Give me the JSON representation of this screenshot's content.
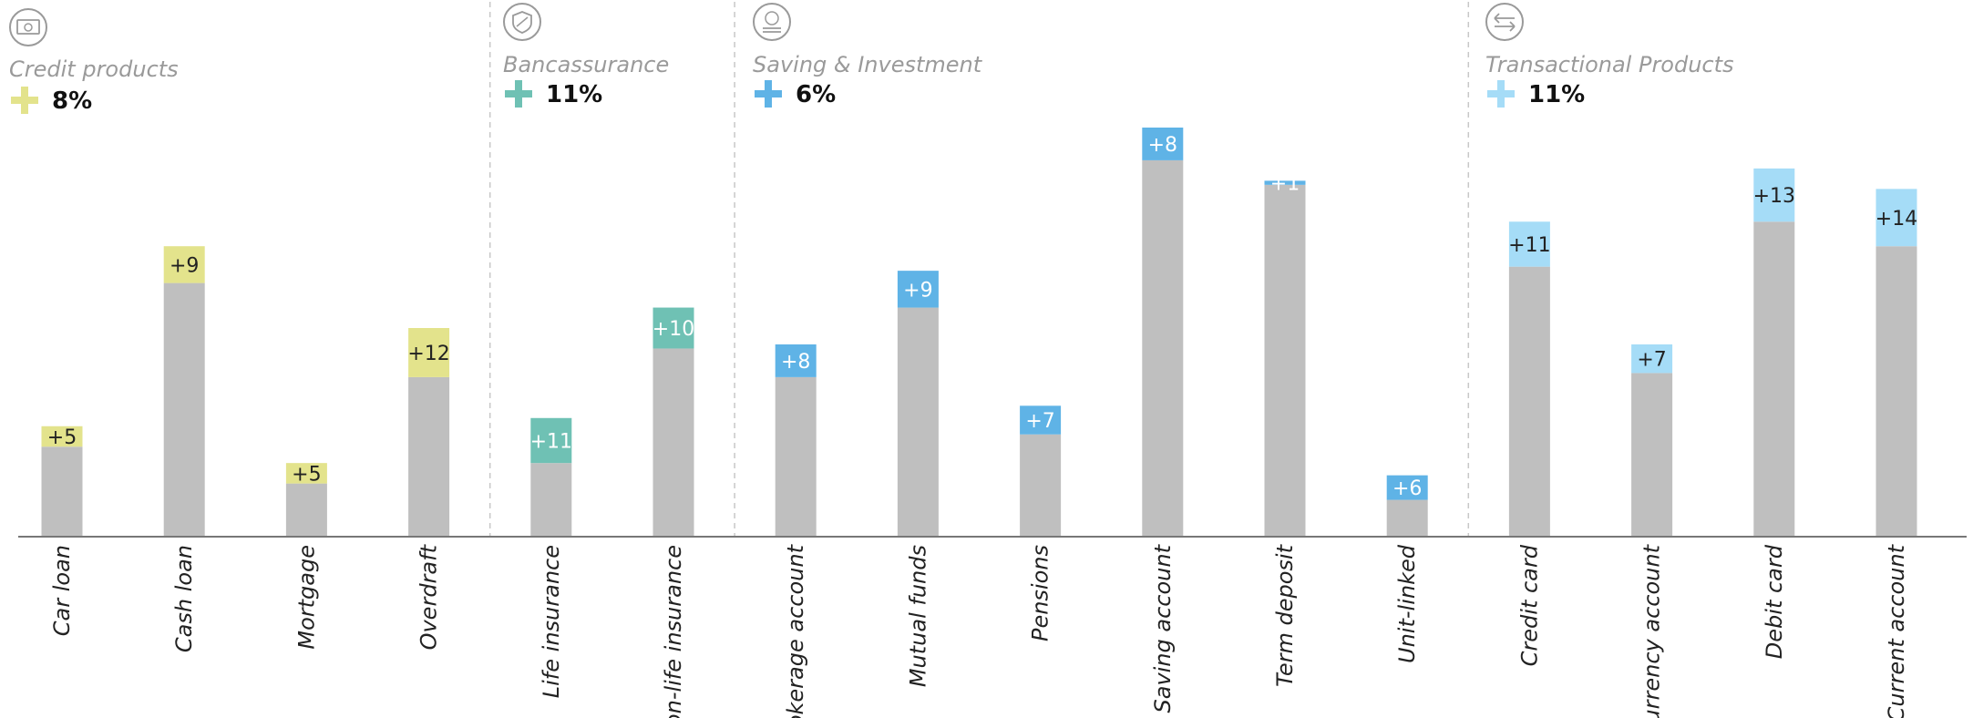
{
  "chart_data": {
    "type": "bar",
    "stacked": true,
    "ylim": [
      0,
      100
    ],
    "groups": [
      {
        "title": "Credit products",
        "growth": "8%",
        "icon": "banknote-icon",
        "color": "#e3e38c",
        "label_color": "#222222",
        "categories": [
          "Car loan",
          "Cash loan",
          "Mortgage",
          "Overdraft"
        ],
        "base": [
          22,
          62,
          13,
          39
        ],
        "increase": [
          5,
          9,
          5,
          12
        ],
        "labels": [
          "+5",
          "+9",
          "+5",
          "+12"
        ]
      },
      {
        "title": "Bancassurance",
        "growth": "11%",
        "icon": "shield-icon",
        "color": "#6fc1b4",
        "label_color": "#ffffff",
        "categories": [
          "Life insurance",
          "Non-life insurance"
        ],
        "base": [
          18,
          46
        ],
        "increase": [
          11,
          10
        ],
        "labels": [
          "+11",
          "+10"
        ]
      },
      {
        "title": "Saving & Investment",
        "growth": "6%",
        "icon": "coins-icon",
        "color": "#5fb3e6",
        "label_color": "#ffffff",
        "categories": [
          "Brokerage account",
          "Mutual funds",
          "Pensions",
          "Saving account",
          "Term deposit",
          "Unit-linked"
        ],
        "base": [
          39,
          56,
          25,
          92,
          86,
          9
        ],
        "increase": [
          8,
          9,
          7,
          8,
          1,
          6
        ],
        "labels": [
          "+8",
          "+9",
          "+7",
          "+8",
          "+1",
          "+6"
        ]
      },
      {
        "title": "Transactional Products",
        "growth": "11%",
        "icon": "transfer-arrows-icon",
        "color": "#a5dcf7",
        "label_color": "#222222",
        "categories": [
          "Credit card",
          "Currency account",
          "Debit card",
          "Current account"
        ],
        "base": [
          66,
          40,
          77,
          71
        ],
        "increase": [
          11,
          7,
          13,
          14
        ],
        "labels": [
          "+11",
          "+7",
          "+13",
          "+14"
        ]
      }
    ],
    "base_color": "#bfbfbf"
  }
}
